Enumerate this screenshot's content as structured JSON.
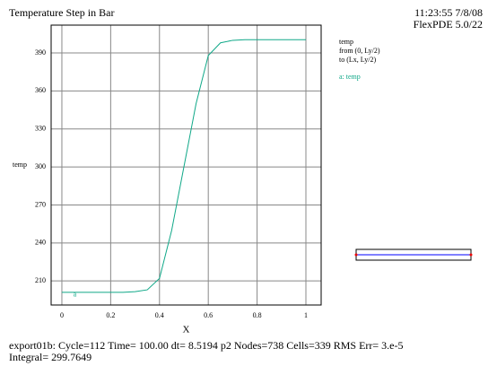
{
  "chart_data": {
    "type": "line",
    "title": "Temperature Step in Bar",
    "timestamp": "11:23:55 7/8/08",
    "version": "FlexPDE 5.0/22",
    "legend_title": [
      "temp",
      "from (0, Ly/2)",
      "to (Lx, Ly/2)"
    ],
    "curve_label": "a",
    "xlabel": "X",
    "ylabel": "temp",
    "x": [
      0,
      0.05,
      0.1,
      0.15,
      0.2,
      0.25,
      0.3,
      0.35,
      0.4,
      0.45,
      0.5,
      0.55,
      0.6,
      0.65,
      0.7,
      0.75,
      0.8,
      0.85,
      0.9,
      0.95,
      1
    ],
    "series": [
      {
        "name": "a: temp",
        "color": "#10a888",
        "values": [
          201,
          201,
          201,
          201,
          201,
          201,
          201.5,
          203,
          212,
          250,
          300,
          350,
          388,
          398,
          400,
          400.5,
          400.5,
          400.5,
          400.5,
          400.5,
          400.5
        ]
      }
    ],
    "xlim": [
      -0.044,
      1.0625
    ],
    "ylim": [
      191,
      412
    ],
    "xticks": [
      0,
      0.2,
      0.4,
      0.6,
      0.8,
      1
    ],
    "yticks": [
      210,
      240,
      270,
      300,
      330,
      360,
      390
    ],
    "grid": true,
    "footer": [
      "export01b:  Cycle=112  Time= 100.00  dt= 8.5194  p2  Nodes=738 Cells=339 RMS Err= 3.e-5",
      "Integral=   299.7649"
    ]
  }
}
